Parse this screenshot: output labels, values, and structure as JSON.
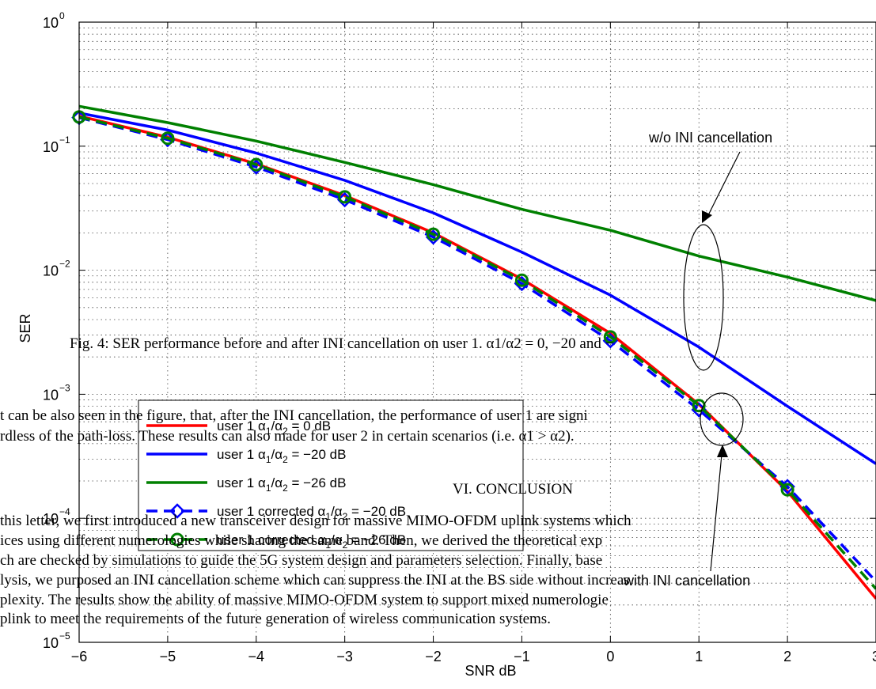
{
  "chart_data": {
    "type": "line",
    "xlabel": "SNR dB",
    "ylabel": "SER",
    "xlim": [
      -6,
      3
    ],
    "ylim": [
      1e-05,
      1
    ],
    "yscale": "log",
    "grid": true,
    "x_ticks": [
      "−6",
      "−5",
      "−4",
      "−3",
      "−2",
      "−1",
      "0",
      "1",
      "2",
      "3"
    ],
    "y_ticks": [
      {
        "base": "10",
        "exp": "0"
      },
      {
        "base": "10",
        "exp": "−1"
      },
      {
        "base": "10",
        "exp": "−2"
      },
      {
        "base": "10",
        "exp": "−3"
      },
      {
        "base": "10",
        "exp": "−4"
      },
      {
        "base": "10",
        "exp": "−5"
      }
    ],
    "legend_position": "bottom-left",
    "series": [
      {
        "name": "user 1 α1/α2 = 0 dB",
        "color": "#ff0000",
        "dashed": false,
        "marker": "none",
        "x": [
          -6,
          -5,
          -4,
          -3,
          -2,
          -1,
          0,
          1,
          2,
          3
        ],
        "y": [
          0.175,
          0.118,
          0.072,
          0.04,
          0.02,
          0.0085,
          0.0031,
          0.00083,
          0.000165,
          2.25e-05
        ]
      },
      {
        "name": "user 1 α1/α2 = −20 dB",
        "color": "#0000ff",
        "dashed": false,
        "marker": "none",
        "x": [
          -6,
          -5,
          -4,
          -3,
          -2,
          -1,
          0,
          1,
          2,
          3
        ],
        "y": [
          0.185,
          0.135,
          0.088,
          0.053,
          0.029,
          0.014,
          0.0063,
          0.0024,
          0.0008,
          0.000275
        ]
      },
      {
        "name": "user 1 α1/α2 = −26 dB",
        "color": "#008000",
        "dashed": false,
        "marker": "none",
        "x": [
          -6,
          -5,
          -4,
          -3,
          -2,
          -1,
          0,
          1,
          2,
          3
        ],
        "y": [
          0.21,
          0.155,
          0.11,
          0.074,
          0.049,
          0.031,
          0.021,
          0.013,
          0.0088,
          0.0057
        ]
      },
      {
        "name": "user 1 corrected α1/α2 = −20 dB",
        "color": "#0000ff",
        "dashed": true,
        "marker": "diamond",
        "x": [
          -6,
          -5,
          -4,
          -3,
          -2,
          -1,
          0,
          1,
          2,
          3
        ],
        "y": [
          0.17,
          0.113,
          0.068,
          0.037,
          0.0185,
          0.0078,
          0.0027,
          0.00075,
          0.00018,
          3.1e-05
        ]
      },
      {
        "name": "user 1 corrected α1/α2 = −26 dB",
        "color": "#008000",
        "dashed": true,
        "marker": "circle",
        "x": [
          -6,
          -5,
          -4,
          -3,
          -2,
          -1,
          0,
          1,
          2,
          3
        ],
        "y": [
          0.172,
          0.116,
          0.071,
          0.039,
          0.0195,
          0.0083,
          0.0029,
          0.00081,
          0.00017,
          2.7e-05
        ]
      }
    ],
    "legend": [
      {
        "pre": "user 1 α",
        "sub1": "1",
        "mid": "/α",
        "sub2": "2",
        "post": " = 0 dB"
      },
      {
        "pre": "user 1 α",
        "sub1": "1",
        "mid": "/α",
        "sub2": "2",
        "post": " = −20 dB"
      },
      {
        "pre": "user 1 α",
        "sub1": "1",
        "mid": "/α",
        "sub2": "2",
        "post": " = −26 dB"
      },
      {
        "pre": "user 1 corrected α",
        "sub1": "1",
        "mid": "/α",
        "sub2": "2",
        "post": " = −20 dB"
      },
      {
        "pre": "user 1 corrected α",
        "sub1": "1",
        "mid": "/α",
        "sub2": "2",
        "post": " = −26 dB"
      }
    ],
    "annotations": {
      "wo": "w/o INI cancellation",
      "with": "with INI cancellation"
    }
  },
  "overlay": {
    "caption": "Fig. 4: SER performance before and after INI cancellation on user 1. α1/α2 = 0, −20 and −",
    "lines": [
      "t can be also seen in the figure, that, after the INI cancellation, the performance of user 1 are signi",
      "rdless of the path-loss. These results can also made for user 2 in certain scenarios (i.e. α1 > α2).",
      "VI. CONCLUSION",
      "this letter, we first introduced a new transceiver design for massive MIMO-OFDM uplink systems which",
      "ices using different numerologies while sharing the same band. Then, we derived the theoretical exp",
      "ch are checked by simulations to guide the 5G system design and parameters selection. Finally, base",
      "lysis, we purposed an INI cancellation scheme which can suppress the INI at the BS side without increas",
      "plexity. The results show the ability of massive MIMO-OFDM system to support mixed numerologie",
      "plink to meet the requirements of the future generation of wireless communication systems."
    ]
  }
}
